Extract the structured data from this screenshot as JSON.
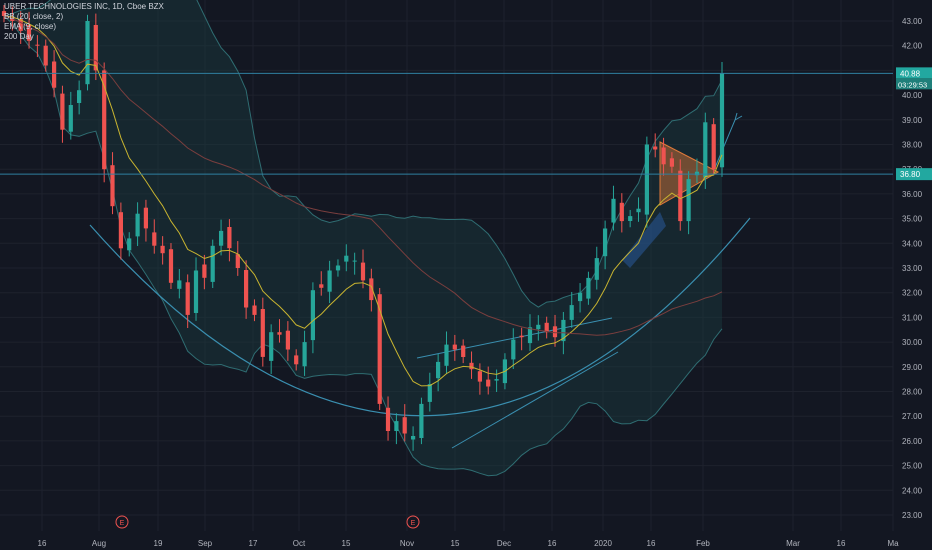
{
  "legend": {
    "symbol": "UBER TECHNOLOGIES INC, 1D, Cboe BZX",
    "bb": "BB (20, close, 2)",
    "ema": "EMA (9, close)",
    "sma": "200 Day"
  },
  "price_badges": {
    "last_price": "40.88",
    "countdown": "03:29:53",
    "level": "36.80"
  },
  "earnings_marker": "E",
  "colors": {
    "background": "#131722",
    "up": "#26a69a",
    "down": "#ef5350",
    "grid": "#1e222d",
    "axis_text": "#b2b5be",
    "bb_fill": "#1b3b40",
    "ema": "#c8b430",
    "sma": "#7a3e3e",
    "trend": "#3a8fb0"
  },
  "chart_data": {
    "type": "candlestick",
    "title": "UBER TECHNOLOGIES INC, 1D, Cboe BZX",
    "y_ticks": [
      "23.00",
      "24.00",
      "25.00",
      "26.00",
      "27.00",
      "28.00",
      "29.00",
      "30.00",
      "31.00",
      "32.00",
      "33.00",
      "34.00",
      "35.00",
      "36.00",
      "37.00",
      "38.00",
      "39.00",
      "40.00",
      "41.00",
      "42.00",
      "43.00"
    ],
    "x_ticks": [
      "16",
      "Aug",
      "19",
      "Sep",
      "17",
      "Oct",
      "15",
      "Nov",
      "15",
      "Dec",
      "16",
      "2020",
      "16",
      "Feb",
      "Mar",
      "16",
      "Ma"
    ],
    "ylim": [
      22.5,
      43.6
    ],
    "horizontal_levels": [
      40.88,
      36.8
    ],
    "close_series": [
      43.2,
      43.0,
      42.6,
      42.2,
      42.0,
      41.2,
      40.3,
      38.6,
      39.6,
      40.2,
      43.0,
      41.0,
      37.0,
      35.5,
      33.8,
      34.2,
      35.2,
      34.6,
      33.9,
      33.6,
      32.4,
      32.5,
      31.1,
      32.9,
      32.6,
      33.9,
      34.5,
      33.8,
      33.0,
      31.4,
      31.1,
      29.4,
      30.4,
      30.3,
      29.7,
      29.1,
      30.0,
      32.1,
      32.2,
      32.9,
      33.1,
      33.5,
      33.3,
      32.5,
      31.7,
      27.5,
      26.4,
      26.8,
      26.3,
      26.2,
      27.5,
      28.3,
      29.2,
      29.9,
      29.7,
      29.4,
      28.9,
      28.4,
      28.2,
      28.5,
      29.3,
      30.1,
      30.2,
      30.6,
      30.7,
      30.4,
      30.2,
      30.9,
      31.5,
      32.0,
      32.6,
      33.4,
      34.6,
      35.8,
      34.9,
      35.1,
      35.4,
      38.0,
      37.8,
      37.2,
      37.1,
      34.9,
      36.6,
      36.9,
      38.9,
      37.0,
      40.88
    ]
  }
}
